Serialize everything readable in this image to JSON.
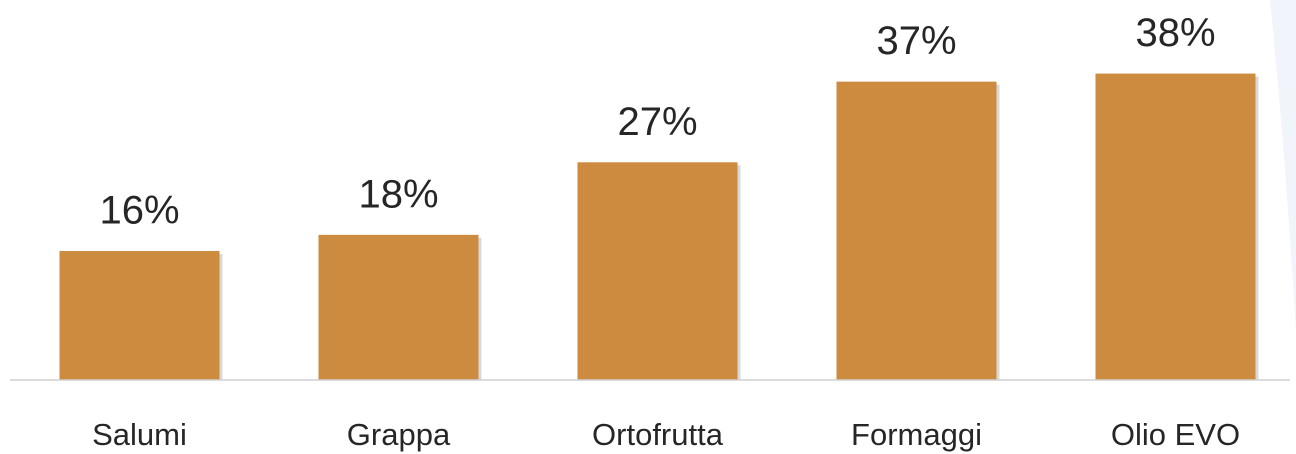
{
  "chart_data": {
    "type": "bar",
    "categories": [
      "Salumi",
      "Grappa",
      "Ortofrutta",
      "Formaggi",
      "Olio EVO"
    ],
    "values": [
      16,
      18,
      27,
      37,
      38
    ],
    "value_labels": [
      "16%",
      "18%",
      "27%",
      "37%",
      "38%"
    ],
    "color": "#cc8b3e",
    "ylim": [
      0,
      47
    ]
  }
}
